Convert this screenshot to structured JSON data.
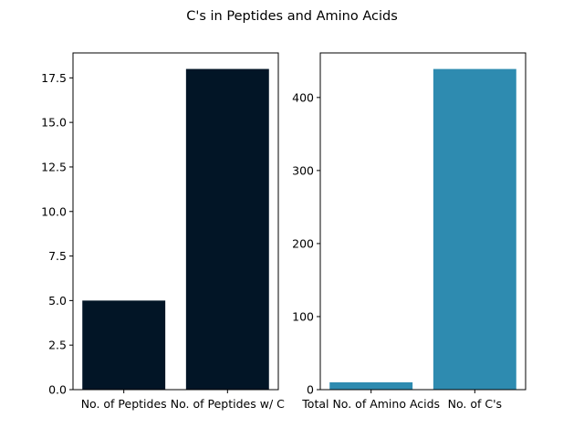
{
  "figure": {
    "suptitle": "C's in Peptides and Amino Acids"
  },
  "chart_data": [
    {
      "type": "bar",
      "categories": [
        "No. of Peptides",
        "No. of Peptides w/ C"
      ],
      "values": [
        5,
        18
      ],
      "ylim": [
        0,
        18.9
      ],
      "yticks": [
        0.0,
        2.5,
        5.0,
        7.5,
        10.0,
        12.5,
        15.0,
        17.5
      ],
      "ytick_labels": [
        "0.0",
        "2.5",
        "5.0",
        "7.5",
        "10.0",
        "12.5",
        "15.0",
        "17.5"
      ],
      "color": "#021526",
      "grid": false
    },
    {
      "type": "bar",
      "categories": [
        "Total No. of Amino Acids",
        "No. of C's"
      ],
      "values": [
        10,
        439
      ],
      "ylim": [
        0,
        461
      ],
      "yticks": [
        0,
        100,
        200,
        300,
        400
      ],
      "ytick_labels": [
        "0",
        "100",
        "200",
        "300",
        "400"
      ],
      "color": "#2E8BB0",
      "grid": false
    }
  ]
}
